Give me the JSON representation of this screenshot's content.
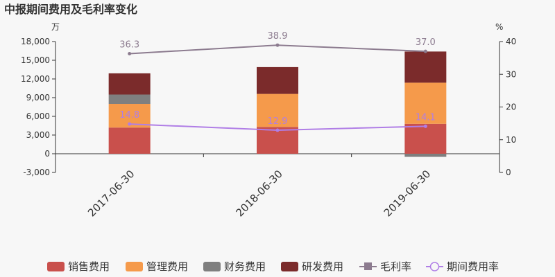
{
  "chart_data": {
    "type": "bar",
    "title": "中报期间费用及毛利率变化",
    "left_unit": "万",
    "right_unit": "%",
    "categories": [
      "2017-06-30",
      "2018-06-30",
      "2019-06-30"
    ],
    "left_axis": {
      "min": -3000,
      "max": 18000,
      "ticks": [
        -3000,
        0,
        3000,
        6000,
        9000,
        12000,
        15000,
        18000
      ]
    },
    "right_axis": {
      "min": 0,
      "max": 40,
      "ticks": [
        0,
        10,
        20,
        30,
        40
      ]
    },
    "bar_series": [
      {
        "name": "销售费用",
        "color": "#c9504c",
        "values": [
          4200,
          4300,
          4800
        ]
      },
      {
        "name": "管理费用",
        "color": "#f59a4b",
        "values": [
          3800,
          5300,
          6600
        ]
      },
      {
        "name": "财务费用",
        "color": "#7f7f7f",
        "values": [
          1500,
          0,
          -500
        ]
      },
      {
        "name": "研发费用",
        "color": "#7b2b2b",
        "values": [
          3400,
          4300,
          5000
        ]
      }
    ],
    "line_series": [
      {
        "name": "毛利率",
        "color": "#8c7b8f",
        "marker": "square",
        "values": [
          36.3,
          38.9,
          37.0
        ],
        "labels": [
          "36.3",
          "38.9",
          "37.0"
        ]
      },
      {
        "name": "期间费用率",
        "color": "#b07ee6",
        "marker": "circle",
        "values": [
          14.8,
          12.9,
          14.1
        ],
        "labels": [
          "14.8",
          "12.9",
          "14.1"
        ]
      }
    ],
    "grid": false,
    "legend_position": "bottom"
  }
}
